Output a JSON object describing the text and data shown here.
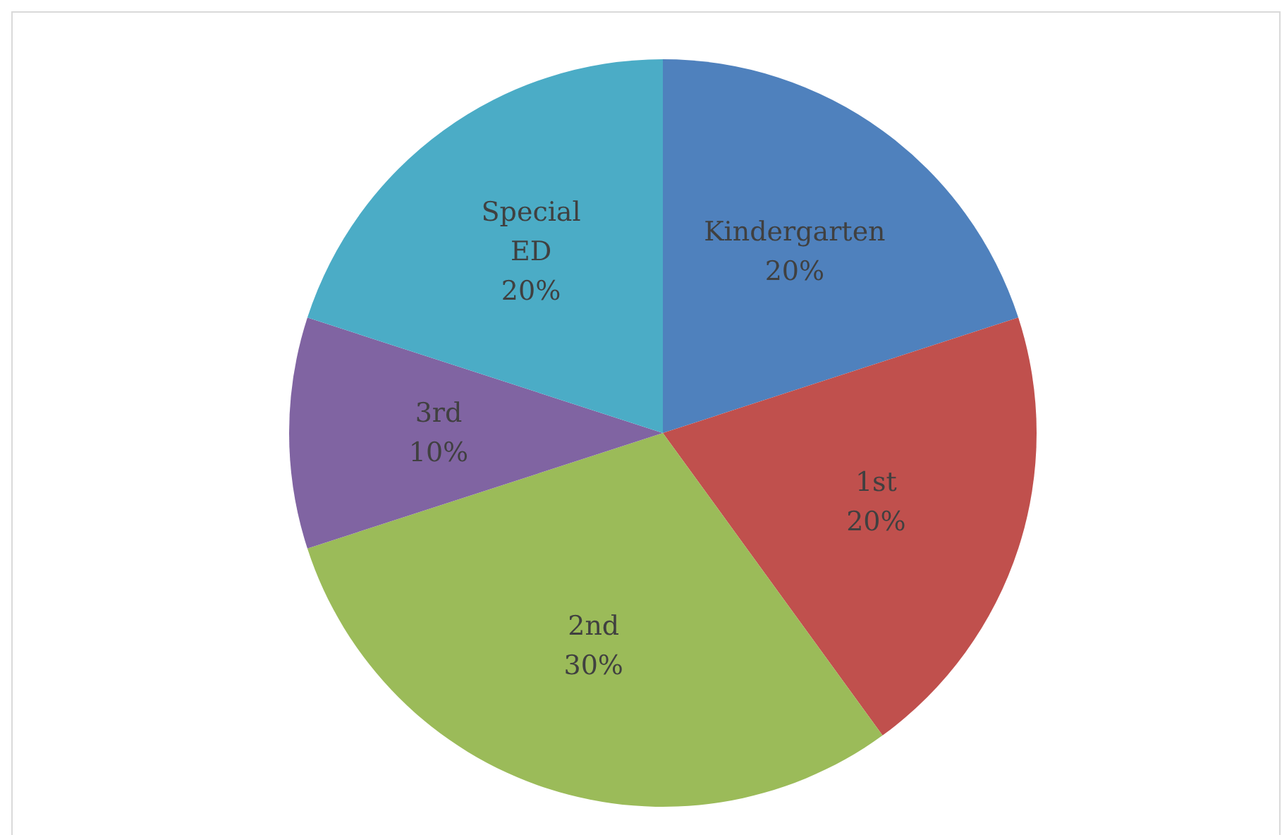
{
  "chart_data": {
    "type": "pie",
    "categories": [
      "Kindergarten",
      "1st",
      "2nd",
      "3rd",
      "Special ED"
    ],
    "values": [
      20,
      20,
      30,
      10,
      20
    ],
    "colors": [
      "#4f81bd",
      "#c0504d",
      "#9bbb59",
      "#8064a2",
      "#4bacc6"
    ],
    "value_labels": [
      "20%",
      "20%",
      "30%",
      "10%",
      "20%"
    ],
    "legend": false
  }
}
